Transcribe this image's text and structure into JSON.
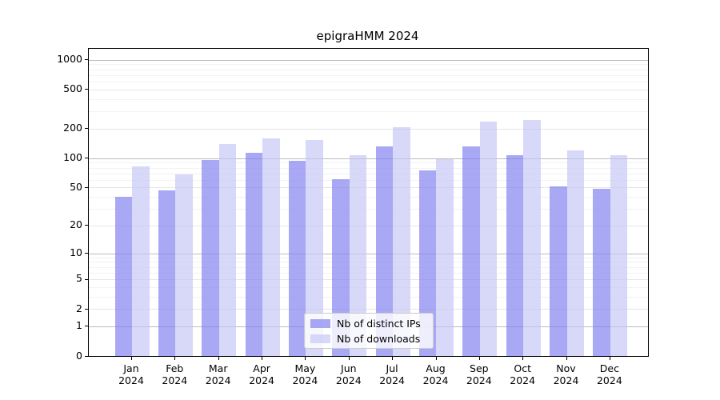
{
  "title": "epigraHMM 2024",
  "colors": {
    "ips_fill": "rgba(127,127,240,0.68)",
    "downloads_fill": "rgba(198,198,245,0.68)",
    "gridline_major": "#bbbbbb",
    "gridline_labeled": "#e6e6e6",
    "gridline_minor": "#f2f2f2",
    "spine": "#000000",
    "legend_border": "#cccccc"
  },
  "y_axis": {
    "scale": "log10(value+1), linear-zero baseline",
    "tick_labels": [
      "1000",
      "500",
      "200",
      "100",
      "50",
      "20",
      "10",
      "5",
      "2",
      "1",
      "0"
    ],
    "tick_values": [
      1000,
      500,
      200,
      100,
      50,
      20,
      10,
      5,
      2,
      1,
      0
    ],
    "major_values": [
      1000,
      100,
      10,
      1
    ],
    "minor_values": [
      900,
      800,
      700,
      600,
      400,
      300,
      90,
      80,
      70,
      60,
      40,
      30,
      9,
      8,
      7,
      6,
      4,
      3
    ]
  },
  "x_axis": {
    "months": [
      {
        "month": "Jan",
        "year": "2024"
      },
      {
        "month": "Feb",
        "year": "2024"
      },
      {
        "month": "Mar",
        "year": "2024"
      },
      {
        "month": "Apr",
        "year": "2024"
      },
      {
        "month": "May",
        "year": "2024"
      },
      {
        "month": "Jun",
        "year": "2024"
      },
      {
        "month": "Jul",
        "year": "2024"
      },
      {
        "month": "Aug",
        "year": "2024"
      },
      {
        "month": "Sep",
        "year": "2024"
      },
      {
        "month": "Oct",
        "year": "2024"
      },
      {
        "month": "Nov",
        "year": "2024"
      },
      {
        "month": "Dec",
        "year": "2024"
      }
    ]
  },
  "legend": {
    "items": [
      {
        "label": "Nb of distinct IPs",
        "series_key": "ips"
      },
      {
        "label": "Nb of downloads",
        "series_key": "downloads"
      }
    ]
  },
  "chart_data": {
    "type": "bar",
    "title": "epigraHMM 2024",
    "categories": [
      "Jan 2024",
      "Feb 2024",
      "Mar 2024",
      "Apr 2024",
      "May 2024",
      "Jun 2024",
      "Jul 2024",
      "Aug 2024",
      "Sep 2024",
      "Oct 2024",
      "Nov 2024",
      "Dec 2024"
    ],
    "series": [
      {
        "name": "Nb of distinct IPs",
        "values": [
          40,
          47,
          96,
          113,
          94,
          61,
          131,
          75,
          131,
          107,
          51,
          48
        ]
      },
      {
        "name": "Nb of downloads",
        "values": [
          82,
          68,
          140,
          158,
          154,
          108,
          208,
          97,
          238,
          246,
          119,
          108
        ]
      }
    ],
    "xlabel": "",
    "ylabel": "",
    "yscale": "log1p",
    "ylim": [
      0,
      1290
    ],
    "yticks": [
      0,
      1,
      2,
      5,
      10,
      20,
      50,
      100,
      200,
      500,
      1000
    ],
    "grid": true,
    "legend_position": "lower center"
  }
}
